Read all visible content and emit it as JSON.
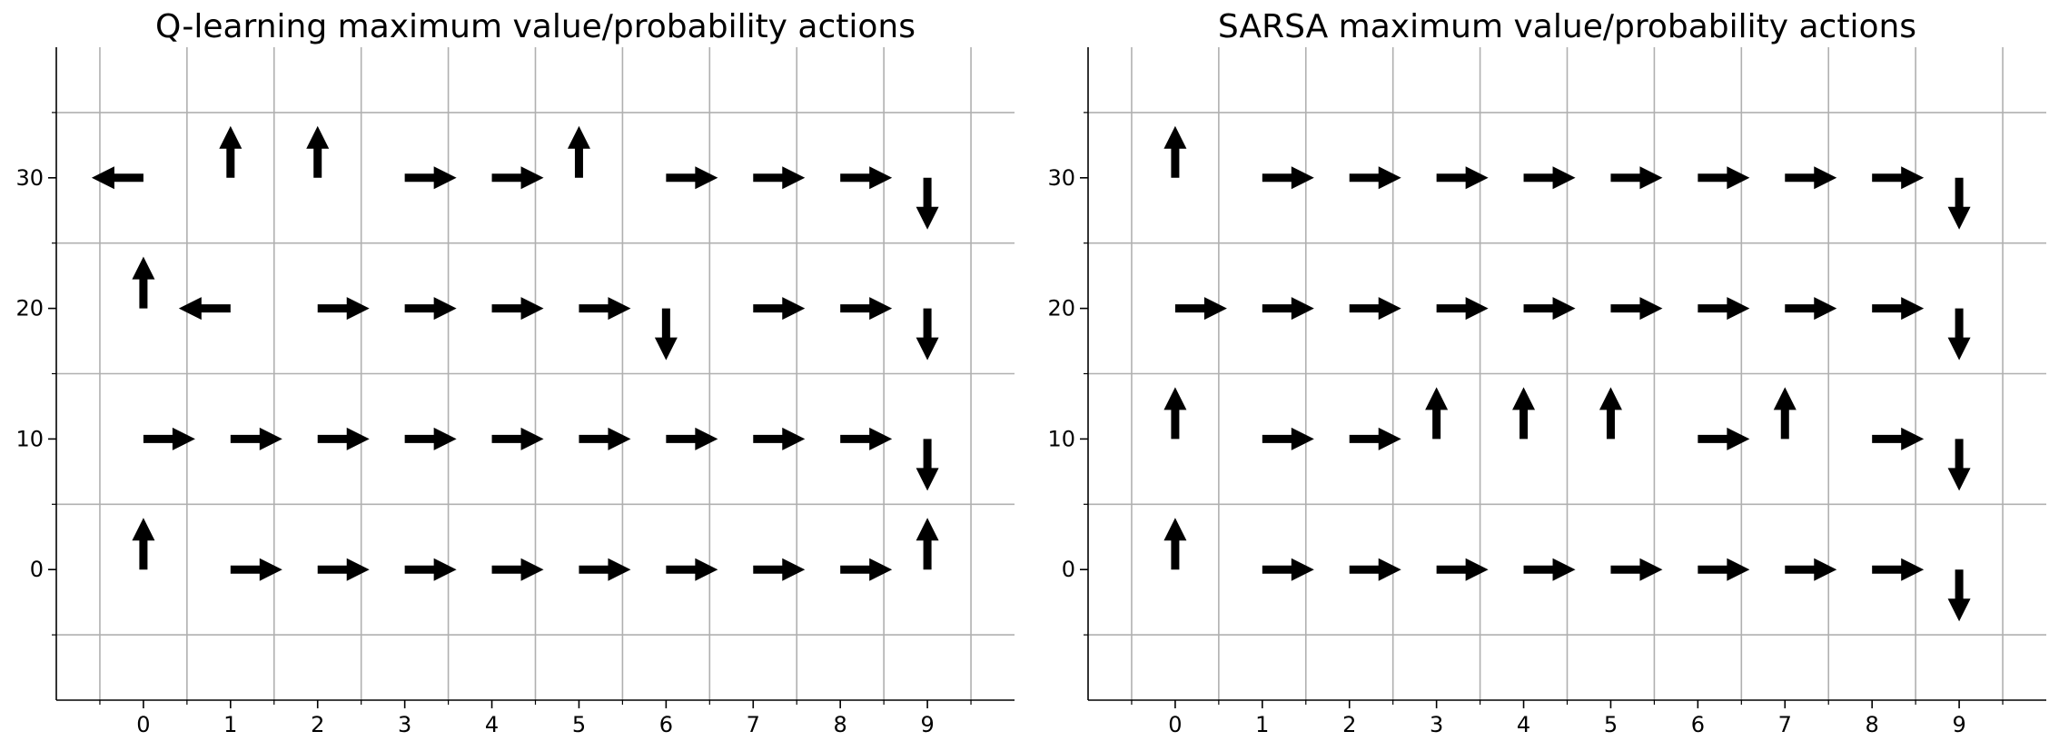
{
  "chart_data": [
    {
      "type": "quiver",
      "title": "Q-learning maximum value/probability actions",
      "xlabel": "",
      "ylabel": "",
      "xlim": [
        -1,
        10
      ],
      "ylim": [
        -10,
        40
      ],
      "xticks": [
        0,
        1,
        2,
        3,
        4,
        5,
        6,
        7,
        8,
        9
      ],
      "yticks": [
        0,
        10,
        20,
        30
      ],
      "xtick_labels": [
        "0",
        "1",
        "2",
        "3",
        "4",
        "5",
        "6",
        "7",
        "8",
        "9"
      ],
      "ytick_labels": [
        "0",
        "10",
        "20",
        "30"
      ],
      "grid": true,
      "arrows": [
        {
          "x": 0,
          "y": 0,
          "dir": "up"
        },
        {
          "x": 1,
          "y": 0,
          "dir": "right"
        },
        {
          "x": 2,
          "y": 0,
          "dir": "right"
        },
        {
          "x": 3,
          "y": 0,
          "dir": "right"
        },
        {
          "x": 4,
          "y": 0,
          "dir": "right"
        },
        {
          "x": 5,
          "y": 0,
          "dir": "right"
        },
        {
          "x": 6,
          "y": 0,
          "dir": "right"
        },
        {
          "x": 7,
          "y": 0,
          "dir": "right"
        },
        {
          "x": 8,
          "y": 0,
          "dir": "right"
        },
        {
          "x": 9,
          "y": 0,
          "dir": "up"
        },
        {
          "x": 0,
          "y": 10,
          "dir": "right"
        },
        {
          "x": 1,
          "y": 10,
          "dir": "right"
        },
        {
          "x": 2,
          "y": 10,
          "dir": "right"
        },
        {
          "x": 3,
          "y": 10,
          "dir": "right"
        },
        {
          "x": 4,
          "y": 10,
          "dir": "right"
        },
        {
          "x": 5,
          "y": 10,
          "dir": "right"
        },
        {
          "x": 6,
          "y": 10,
          "dir": "right"
        },
        {
          "x": 7,
          "y": 10,
          "dir": "right"
        },
        {
          "x": 8,
          "y": 10,
          "dir": "right"
        },
        {
          "x": 9,
          "y": 10,
          "dir": "down"
        },
        {
          "x": 0,
          "y": 20,
          "dir": "up"
        },
        {
          "x": 1,
          "y": 20,
          "dir": "left"
        },
        {
          "x": 2,
          "y": 20,
          "dir": "right"
        },
        {
          "x": 3,
          "y": 20,
          "dir": "right"
        },
        {
          "x": 4,
          "y": 20,
          "dir": "right"
        },
        {
          "x": 5,
          "y": 20,
          "dir": "right"
        },
        {
          "x": 6,
          "y": 20,
          "dir": "down"
        },
        {
          "x": 7,
          "y": 20,
          "dir": "right"
        },
        {
          "x": 8,
          "y": 20,
          "dir": "right"
        },
        {
          "x": 9,
          "y": 20,
          "dir": "down"
        },
        {
          "x": 0,
          "y": 30,
          "dir": "left"
        },
        {
          "x": 1,
          "y": 30,
          "dir": "up"
        },
        {
          "x": 2,
          "y": 30,
          "dir": "up"
        },
        {
          "x": 3,
          "y": 30,
          "dir": "right"
        },
        {
          "x": 4,
          "y": 30,
          "dir": "right"
        },
        {
          "x": 5,
          "y": 30,
          "dir": "up"
        },
        {
          "x": 6,
          "y": 30,
          "dir": "right"
        },
        {
          "x": 7,
          "y": 30,
          "dir": "right"
        },
        {
          "x": 8,
          "y": 30,
          "dir": "right"
        },
        {
          "x": 9,
          "y": 30,
          "dir": "down"
        }
      ]
    },
    {
      "type": "quiver",
      "title": "SARSA maximum value/probability actions",
      "xlabel": "",
      "ylabel": "",
      "xlim": [
        -1,
        10
      ],
      "ylim": [
        -10,
        40
      ],
      "xticks": [
        0,
        1,
        2,
        3,
        4,
        5,
        6,
        7,
        8,
        9
      ],
      "yticks": [
        0,
        10,
        20,
        30
      ],
      "xtick_labels": [
        "0",
        "1",
        "2",
        "3",
        "4",
        "5",
        "6",
        "7",
        "8",
        "9"
      ],
      "ytick_labels": [
        "0",
        "10",
        "20",
        "30"
      ],
      "grid": true,
      "arrows": [
        {
          "x": 0,
          "y": 0,
          "dir": "up"
        },
        {
          "x": 1,
          "y": 0,
          "dir": "right"
        },
        {
          "x": 2,
          "y": 0,
          "dir": "right"
        },
        {
          "x": 3,
          "y": 0,
          "dir": "right"
        },
        {
          "x": 4,
          "y": 0,
          "dir": "right"
        },
        {
          "x": 5,
          "y": 0,
          "dir": "right"
        },
        {
          "x": 6,
          "y": 0,
          "dir": "right"
        },
        {
          "x": 7,
          "y": 0,
          "dir": "right"
        },
        {
          "x": 8,
          "y": 0,
          "dir": "right"
        },
        {
          "x": 9,
          "y": 0,
          "dir": "down"
        },
        {
          "x": 0,
          "y": 10,
          "dir": "up"
        },
        {
          "x": 1,
          "y": 10,
          "dir": "right"
        },
        {
          "x": 2,
          "y": 10,
          "dir": "right"
        },
        {
          "x": 3,
          "y": 10,
          "dir": "up"
        },
        {
          "x": 4,
          "y": 10,
          "dir": "up"
        },
        {
          "x": 5,
          "y": 10,
          "dir": "up"
        },
        {
          "x": 6,
          "y": 10,
          "dir": "right"
        },
        {
          "x": 7,
          "y": 10,
          "dir": "up"
        },
        {
          "x": 8,
          "y": 10,
          "dir": "right"
        },
        {
          "x": 9,
          "y": 10,
          "dir": "down"
        },
        {
          "x": 0,
          "y": 20,
          "dir": "right"
        },
        {
          "x": 1,
          "y": 20,
          "dir": "right"
        },
        {
          "x": 2,
          "y": 20,
          "dir": "right"
        },
        {
          "x": 3,
          "y": 20,
          "dir": "right"
        },
        {
          "x": 4,
          "y": 20,
          "dir": "right"
        },
        {
          "x": 5,
          "y": 20,
          "dir": "right"
        },
        {
          "x": 6,
          "y": 20,
          "dir": "right"
        },
        {
          "x": 7,
          "y": 20,
          "dir": "right"
        },
        {
          "x": 8,
          "y": 20,
          "dir": "right"
        },
        {
          "x": 9,
          "y": 20,
          "dir": "down"
        },
        {
          "x": 0,
          "y": 30,
          "dir": "up"
        },
        {
          "x": 1,
          "y": 30,
          "dir": "right"
        },
        {
          "x": 2,
          "y": 30,
          "dir": "right"
        },
        {
          "x": 3,
          "y": 30,
          "dir": "right"
        },
        {
          "x": 4,
          "y": 30,
          "dir": "right"
        },
        {
          "x": 5,
          "y": 30,
          "dir": "right"
        },
        {
          "x": 6,
          "y": 30,
          "dir": "right"
        },
        {
          "x": 7,
          "y": 30,
          "dir": "right"
        },
        {
          "x": 8,
          "y": 30,
          "dir": "right"
        },
        {
          "x": 9,
          "y": 30,
          "dir": "down"
        }
      ]
    }
  ],
  "colors": {
    "arrow": "#000000",
    "grid": "#b0b0b0",
    "axis": "#000000"
  }
}
